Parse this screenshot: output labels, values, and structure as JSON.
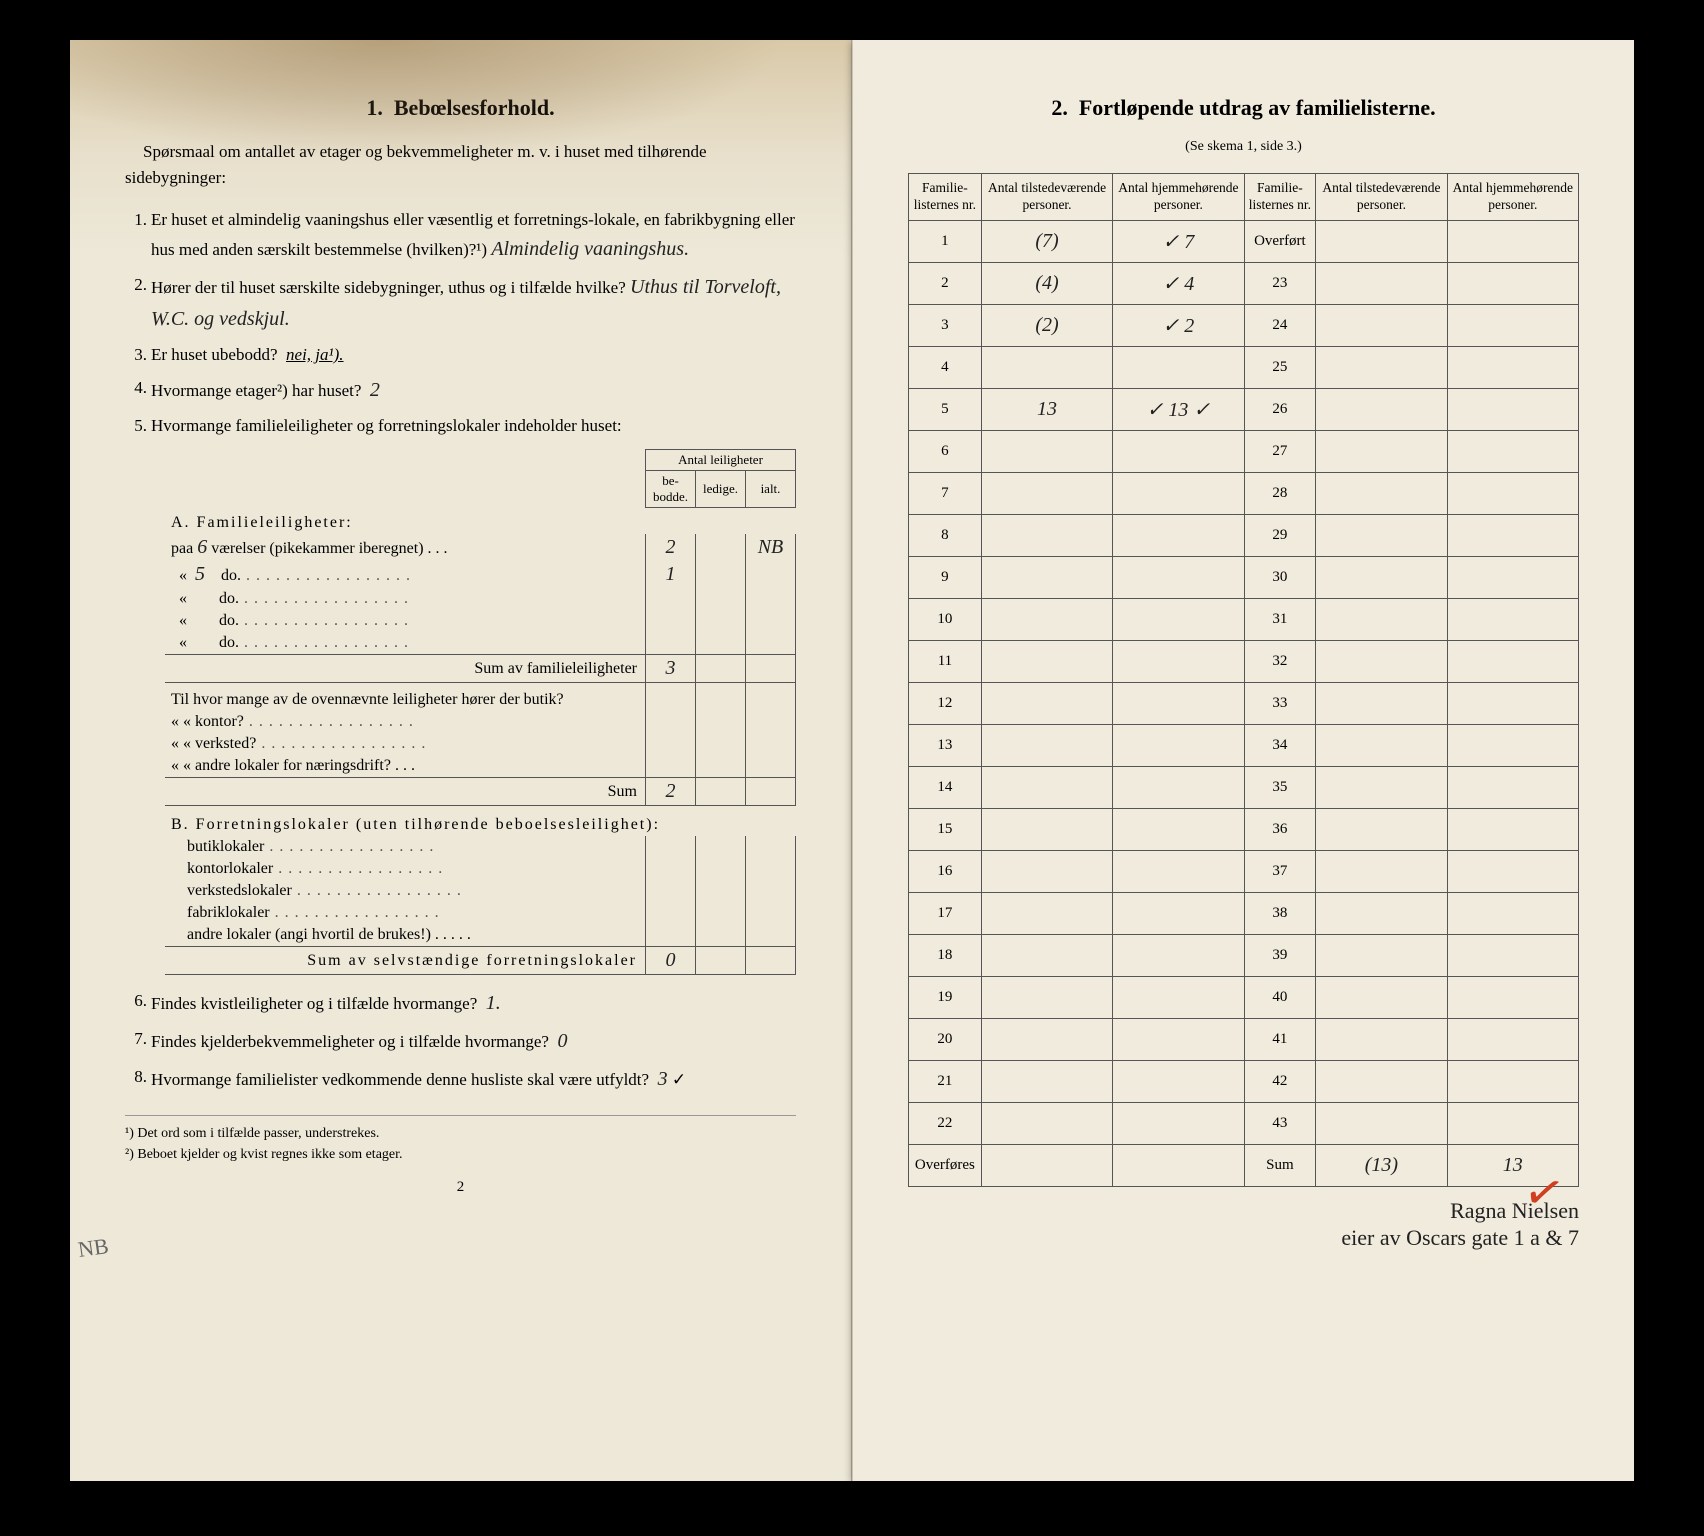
{
  "left": {
    "section_num": "1.",
    "section_title": "Bebœlsesforhold.",
    "intro": "Spørsmaal om antallet av etager og bekvemmeligheter m. v. i huset med tilhørende sidebygninger:",
    "q1_num": "1.",
    "q1": "Er huset et almindelig vaaningshus eller væsentlig et forretnings-lokale, en fabrikbygning eller hus med anden særskilt bestemmelse (hvilken)?¹)",
    "q1_ans": "Almindelig vaaningshus.",
    "q2_num": "2.",
    "q2": "Hører der til huset særskilte sidebygninger, uthus og i tilfælde hvilke?",
    "q2_ans": "Uthus til Torveloft, W.C. og vedskjul.",
    "q3_num": "3.",
    "q3": "Er huset ubebodd?",
    "q3_opts": "nei, ja¹).",
    "q4_num": "4.",
    "q4": "Hvormange etager²) har huset?",
    "q4_ans": "2",
    "q5_num": "5.",
    "q5": "Hvormange familieleiligheter og forretningslokaler indeholder huset:",
    "tbl_hdr_span": "Antal leiligheter",
    "tbl_hdr1": "be-\nbodde.",
    "tbl_hdr2": "ledige.",
    "tbl_hdr3": "ialt.",
    "A_label": "A. Familieleiligheter:",
    "A_r1": "paa",
    "A_r1_n": "6",
    "A_r1_txt": "værelser (pikekammer iberegnet) . . .",
    "A_r1_v": "2",
    "A_r1_i": "NB",
    "A_r2_n": "5",
    "A_r2_txt": "do.",
    "A_r2_v": "1",
    "A_r3_txt": "do.",
    "A_r4_txt": "do.",
    "A_r5_txt": "do.",
    "A_sum_label": "Sum av familieleiligheter",
    "A_sum_v": "3",
    "A_sub1": "Til hvor mange av de ovennævnte leiligheter hører der butik?",
    "A_sub2": "« « kontor?",
    "A_sub3": "« « verksted?",
    "A_sub4": "« « andre lokaler for næringsdrift?",
    "A_sub_sum": "Sum",
    "A_sub_sum_v": "2",
    "B_label": "B. Forretningslokaler (uten tilhørende beboelsesleilighet):",
    "B_r1": "butiklokaler",
    "B_r2": "kontorlokaler",
    "B_r3": "verkstedslokaler",
    "B_r4": "fabriklokaler",
    "B_r5": "andre lokaler (angi hvortil de brukes!)",
    "B_sum_label": "Sum av selvstændige forretningslokaler",
    "B_sum_v": "0",
    "q6_num": "6.",
    "q6": "Findes kvistleiligheter og i tilfælde hvormange?",
    "q6_ans": "1.",
    "q7_num": "7.",
    "q7": "Findes kjelderbekvemmeligheter og i tilfælde hvormange?",
    "q7_ans": "0",
    "q8_num": "8.",
    "q8": "Hvormange familielister vedkommende denne husliste skal være utfyldt?",
    "q8_ans": "3",
    "fn1": "¹) Det ord som i tilfælde passer, understrekes.",
    "fn2": "²) Beboet kjelder og kvist regnes ikke som etager.",
    "pagenum": "2",
    "margin": "NB"
  },
  "right": {
    "section_num": "2.",
    "section_title": "Fortløpende utdrag av familielisterne.",
    "subtitle": "(Se skema 1, side 3.)",
    "col1": "Familie-\nlisternes\nnr.",
    "col2": "Antal\ntilstedeværende\npersoner.",
    "col3": "Antal\nhjemmehørende\npersoner.",
    "col4": "Familie-\nlisternes\nnr.",
    "col5": "Antal\ntilstedeværende\npersoner.",
    "col6": "Antal\nhjemmehørende\npersoner.",
    "left_nums": [
      "1",
      "2",
      "3",
      "4",
      "5",
      "6",
      "7",
      "8",
      "9",
      "10",
      "11",
      "12",
      "13",
      "14",
      "15",
      "16",
      "17",
      "18",
      "19",
      "20",
      "21",
      "22",
      "Overføres"
    ],
    "right_top": "Overført",
    "right_nums": [
      "23",
      "24",
      "25",
      "26",
      "27",
      "28",
      "29",
      "30",
      "31",
      "32",
      "33",
      "34",
      "35",
      "36",
      "37",
      "38",
      "39",
      "40",
      "41",
      "42",
      "43",
      "Sum"
    ],
    "r1a": "(7)",
    "r1b": "✓ 7",
    "r2a": "(4)",
    "r2b": "✓ 4",
    "r3a": "(2)",
    "r3b": "✓ 2",
    "r5a": "13",
    "r5b": "✓ 13 ✓",
    "sum_a": "(13)",
    "sum_b": "13",
    "sig1": "Ragna Nielsen",
    "sig2": "eier av Oscars gate 1 a & 7"
  }
}
